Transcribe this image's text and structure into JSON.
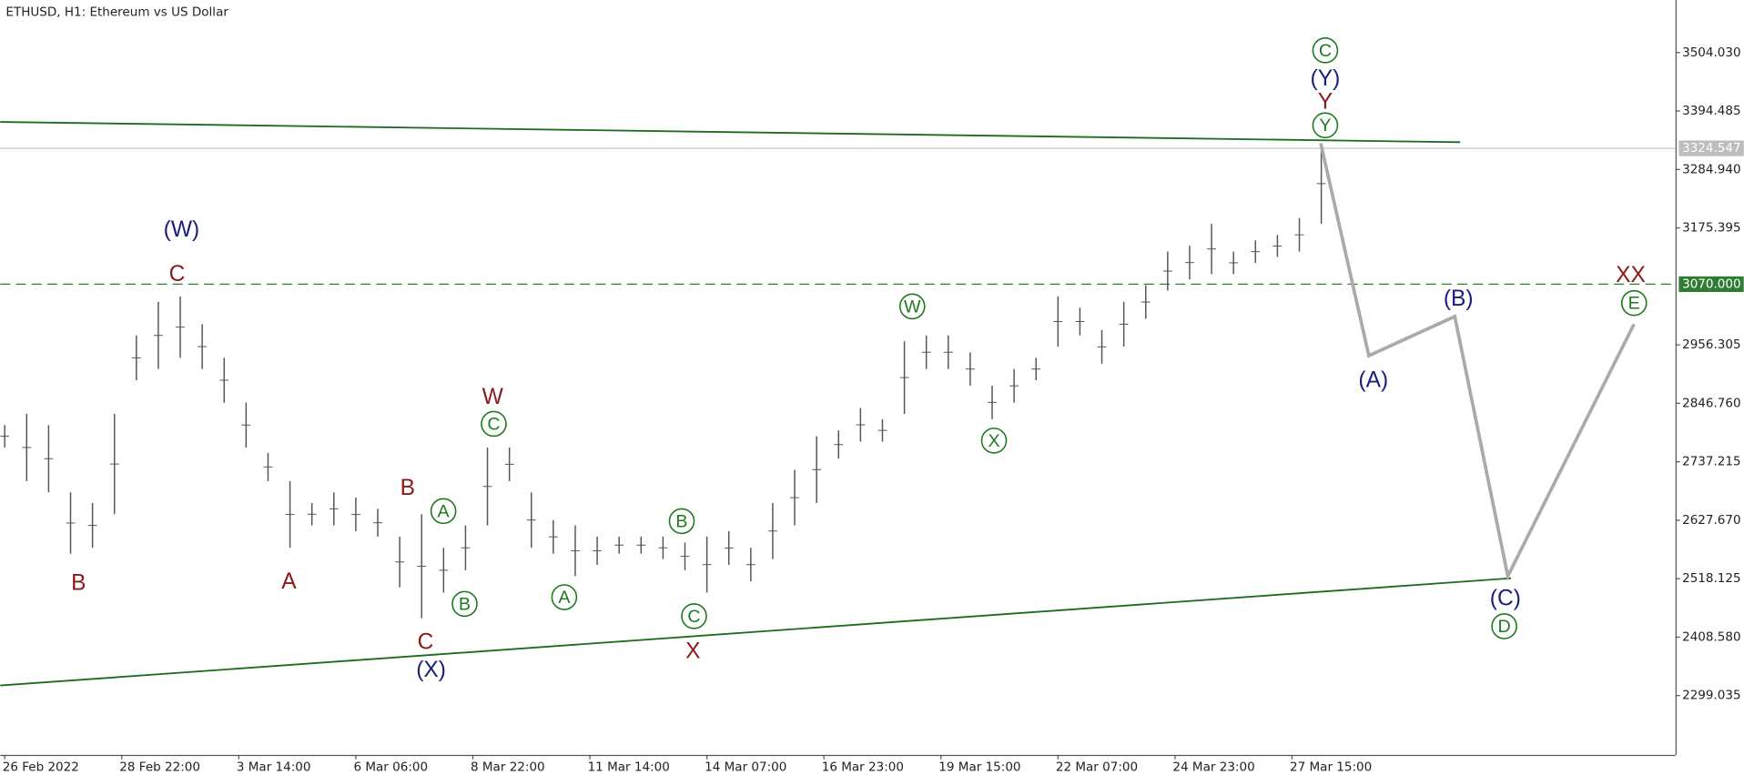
{
  "chart_data": {
    "type": "ohlc",
    "title": "ETHUSD, H1:  Ethereum vs US Dollar",
    "xlim": [
      -2.45,
      913.7
    ],
    "ylim": [
      2188,
      3602.5
    ],
    "xticks": [
      {
        "value": 0,
        "label": "26 Feb 2022"
      },
      {
        "value": 64,
        "label": "28 Feb 22:00"
      },
      {
        "value": 128,
        "label": "3 Mar 14:00"
      },
      {
        "value": 192,
        "label": "6 Mar 06:00"
      },
      {
        "value": 256,
        "label": "8 Mar 22:00"
      },
      {
        "value": 320,
        "label": "11 Mar 14:00"
      },
      {
        "value": 384,
        "label": "14 Mar 07:00"
      },
      {
        "value": 448,
        "label": "16 Mar 23:00"
      },
      {
        "value": 512,
        "label": "19 Mar 15:00"
      },
      {
        "value": 576,
        "label": "22 Mar 07:00"
      },
      {
        "value": 640,
        "label": "24 Mar 23:00"
      },
      {
        "value": 704,
        "label": "27 Mar 15:00"
      }
    ],
    "yticks": [
      {
        "value": 3504.03,
        "label": "3504.030"
      },
      {
        "value": 3394.485,
        "label": "3394.485"
      },
      {
        "value": 3284.94,
        "label": "3284.940"
      },
      {
        "value": 3175.395,
        "label": "3175.395"
      },
      {
        "value": 2956.305,
        "label": "2956.305"
      },
      {
        "value": 2846.76,
        "label": "2846.760"
      },
      {
        "value": 2737.215,
        "label": "2737.215"
      },
      {
        "value": 2627.67,
        "label": "2627.670"
      },
      {
        "value": 2518.125,
        "label": "2518.125"
      },
      {
        "value": 2408.58,
        "label": "2408.580"
      },
      {
        "value": 2299.035,
        "label": "2299.035"
      }
    ],
    "bars": {
      "color": "#555555",
      "x": [
        0,
        12,
        24,
        36,
        48,
        60,
        72,
        84,
        96,
        108,
        120,
        132,
        144,
        156,
        168,
        180,
        192,
        204,
        216,
        228,
        240,
        252,
        264,
        276,
        288,
        300,
        312,
        324,
        336,
        348,
        360,
        372,
        384,
        396,
        408,
        420,
        432,
        444,
        456,
        468,
        480,
        492,
        504,
        516,
        528,
        540,
        552,
        564,
        576,
        588,
        600,
        612,
        624,
        636,
        648,
        660,
        672,
        684,
        696,
        708,
        720
      ],
      "low": [
        2764,
        2701,
        2680,
        2565,
        2576,
        2639,
        2890,
        2911,
        2932,
        2911,
        2848,
        2764,
        2701,
        2576,
        2618,
        2618,
        2607,
        2597,
        2502,
        2444,
        2492,
        2534,
        2618,
        2701,
        2576,
        2565,
        2523,
        2544,
        2565,
        2565,
        2555,
        2534,
        2492,
        2544,
        2513,
        2555,
        2618,
        2660,
        2743,
        2775,
        2775,
        2827,
        2911,
        2911,
        2880,
        2817,
        2848,
        2890,
        2953,
        2974,
        2921,
        2953,
        3005,
        3058,
        3079,
        3089,
        3089,
        3110,
        3121,
        3131,
        3183
      ],
      "high": [
        2806,
        2827,
        2806,
        2680,
        2660,
        2827,
        2974,
        3037,
        3047,
        2995,
        2932,
        2848,
        2754,
        2701,
        2660,
        2680,
        2670,
        2649,
        2597,
        2639,
        2576,
        2618,
        2764,
        2764,
        2680,
        2628,
        2618,
        2597,
        2597,
        2597,
        2597,
        2586,
        2597,
        2607,
        2576,
        2660,
        2722,
        2785,
        2796,
        2838,
        2817,
        2963,
        2974,
        2974,
        2942,
        2880,
        2911,
        2932,
        3047,
        3026,
        2984,
        3037,
        3068,
        3131,
        3142,
        3183,
        3131,
        3152,
        3162,
        3194,
        3334
      ]
    },
    "projection": {
      "color": "#aaaaaa",
      "x": [
        719.7,
        746,
        793,
        822,
        891
      ],
      "values": [
        3334,
        2936,
        3009.5,
        2523,
        2995
      ]
    },
    "trendlines": [
      {
        "color": "#1e6b1e",
        "x": [
          -2.45,
          796
        ],
        "values": [
          3374,
          3336
        ]
      },
      {
        "color": "#1e6b1e",
        "x": [
          -2.45,
          823.7
        ],
        "values": [
          2318,
          2519
        ]
      }
    ],
    "levels": [
      {
        "value": 3070,
        "label": "3070.000",
        "color": "#2e7d32",
        "dashed": true
      },
      {
        "value": 3324.547,
        "label": "3324.547",
        "color": "#bdbdbd",
        "dashed": false
      }
    ],
    "annotations": [
      {
        "text": "(W)",
        "color": "#1b1f7a",
        "circled": false
      },
      {
        "text": "C",
        "color": "#8b1a1a",
        "circled": false
      },
      {
        "text": "B",
        "color": "#8b1a1a",
        "circled": false
      },
      {
        "text": "A",
        "color": "#8b1a1a",
        "circled": false
      },
      {
        "text": "B",
        "color": "#8b1a1a",
        "circled": false
      },
      {
        "text": "A",
        "color": "#1e7a1e",
        "circled": true
      },
      {
        "text": "B",
        "color": "#1e7a1e",
        "circled": true
      },
      {
        "text": "C",
        "color": "#8b1a1a",
        "circled": false
      },
      {
        "text": "(X)",
        "color": "#1b1f7a",
        "circled": false
      },
      {
        "text": "W",
        "color": "#8b1a1a",
        "circled": false
      },
      {
        "text": "C",
        "color": "#1e7a1e",
        "circled": true
      },
      {
        "text": "A",
        "color": "#1e7a1e",
        "circled": true
      },
      {
        "text": "B",
        "color": "#1e7a1e",
        "circled": true
      },
      {
        "text": "C",
        "color": "#1e7a1e",
        "circled": true
      },
      {
        "text": "X",
        "color": "#8b1a1a",
        "circled": false
      },
      {
        "text": "W",
        "color": "#1e7a1e",
        "circled": true
      },
      {
        "text": "X",
        "color": "#1e7a1e",
        "circled": true
      },
      {
        "text": "C",
        "color": "#1e7a1e",
        "circled": true
      },
      {
        "text": "(Y)",
        "color": "#1b1f7a",
        "circled": false
      },
      {
        "text": "Y",
        "color": "#8b1a1a",
        "circled": false
      },
      {
        "text": "Y",
        "color": "#1e7a1e",
        "circled": true
      },
      {
        "text": "(A)",
        "color": "#1b1f7a",
        "circled": false
      },
      {
        "text": "(B)",
        "color": "#1b1f7a",
        "circled": false
      },
      {
        "text": "(C)",
        "color": "#1b1f7a",
        "circled": false
      },
      {
        "text": "D",
        "color": "#1e7a1e",
        "circled": true
      },
      {
        "text": "XX",
        "color": "#8b1a1a",
        "circled": false
      },
      {
        "text": "E",
        "color": "#1e7a1e",
        "circled": true
      }
    ]
  }
}
